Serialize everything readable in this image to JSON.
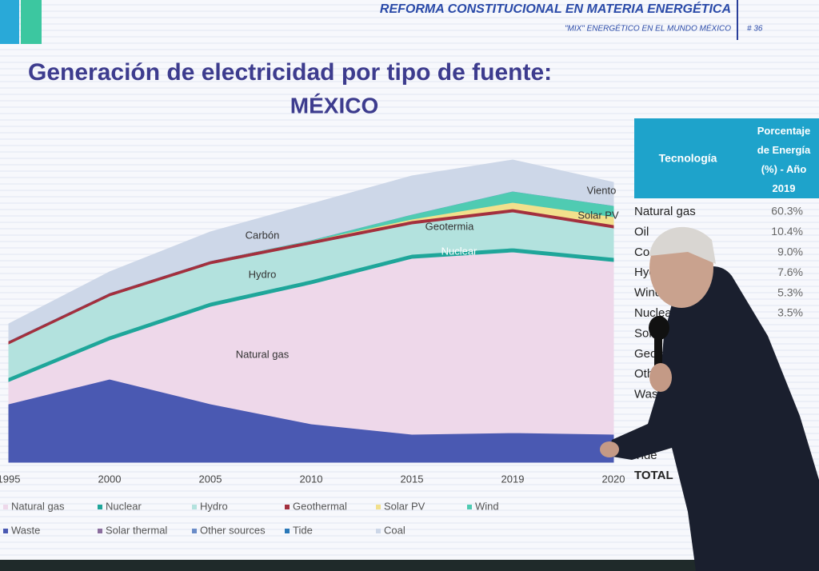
{
  "header": {
    "banner": "REFORMA CONSTITUCIONAL EN MATERIA ENERGÉTICA",
    "subbanner": "\"MIX\" ENERGÉTICO EN EL MUNDO MÉXICO",
    "slide_number": "# 36"
  },
  "chart_data": {
    "type": "stacked-area",
    "title": "Generación de electricidad por tipo de fuente:",
    "subtitle": "MÉXICO",
    "categories": [
      "1995",
      "2000",
      "2005",
      "2010",
      "2015",
      "2019",
      "2020"
    ],
    "ylim": [
      0,
      380
    ],
    "series": [
      {
        "name": "Waste",
        "color": "#4a59b2",
        "values": [
          73,
          104,
          73,
          48,
          35,
          37,
          35
        ]
      },
      {
        "name": "Natural gas",
        "color": "#eed8ea",
        "values": [
          28,
          49,
          122,
          175,
          220,
          226,
          216
        ]
      },
      {
        "name": "Nuclear",
        "color": "#1fa69a",
        "values": [
          5,
          5,
          5,
          5,
          5,
          5,
          5
        ]
      },
      {
        "name": "Hydro",
        "color": "#b3e2de",
        "values": [
          42,
          50,
          48,
          45,
          38,
          45,
          37
        ]
      },
      {
        "name": "Geothermal",
        "color": "#a3303e",
        "values": [
          4,
          4,
          4,
          4,
          4,
          4,
          4
        ]
      },
      {
        "name": "Solar PV",
        "color": "#f2e08c",
        "values": [
          0,
          0,
          0,
          0,
          2,
          8,
          10
        ]
      },
      {
        "name": "Wind",
        "color": "#4fcbb2",
        "values": [
          0,
          0,
          0,
          1,
          6,
          14,
          14
        ]
      },
      {
        "name": "Solar thermal",
        "color": "#8b6e9e",
        "values": [
          0,
          0,
          0,
          0,
          0,
          0,
          0
        ]
      },
      {
        "name": "Other sources",
        "color": "#6a8cc8",
        "values": [
          0,
          0,
          0,
          0,
          0,
          0,
          0
        ]
      },
      {
        "name": "Tide",
        "color": "#2a78b8",
        "values": [
          0,
          0,
          0,
          0,
          0,
          0,
          0
        ]
      },
      {
        "name": "Coal",
        "color": "#cdd7e8",
        "values": [
          21,
          26,
          36,
          45,
          48,
          39,
          29
        ]
      }
    ],
    "annotations": [
      "Natural gas",
      "Nuclear",
      "Hydro",
      "Geotermia",
      "Carbón",
      "Solar PV",
      "Viento"
    ]
  },
  "table": {
    "header": [
      "Tecnología",
      "Porcentaje de Energía (%) - Año 2019"
    ],
    "rows": [
      [
        "Natural gas",
        "60.3%"
      ],
      [
        "Oil",
        "10.4%"
      ],
      [
        "Coal",
        "9.0%"
      ],
      [
        "Hydro",
        "7.6%"
      ],
      [
        "Wind",
        "5.3%"
      ],
      [
        "Nuclear",
        "3.5%"
      ],
      [
        "Solar"
      ],
      [
        "Geothermal"
      ],
      [
        "Other"
      ],
      [
        "Waste"
      ],
      [
        "Tide"
      ],
      [
        "TOTAL"
      ]
    ]
  }
}
